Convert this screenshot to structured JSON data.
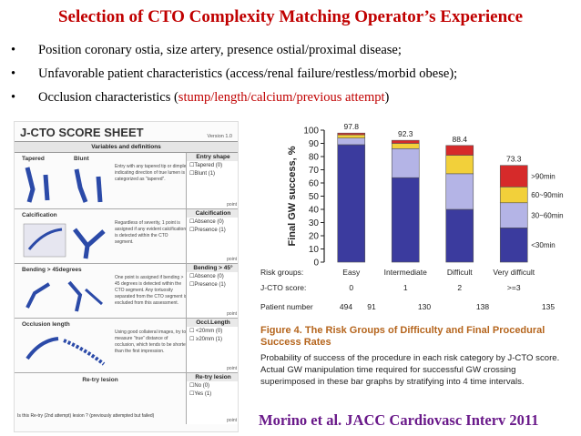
{
  "slide": {
    "title": "Selection of CTO Complexity Matching Operator’s Experience",
    "bullets": [
      {
        "text": "Position coronary ostia, size artery, presence ostial/proximal disease;"
      },
      {
        "text": "Unfavorable patient characteristics (access/renal failure/restless/morbid obese);"
      },
      {
        "prefix": "Occlusion characteristics (",
        "highlight": "stump/length/calcium/previous attempt",
        "suffix": ")"
      }
    ],
    "bullet_symbol": "•",
    "citation": "Morino et al. JACC Cardiovasc Interv 2011",
    "colors": {
      "title": "#c00000",
      "highlight": "#c00000",
      "citation": "#6a1a8a",
      "figure_title": "#b5651d"
    }
  },
  "score_sheet": {
    "title": "J-CTO SCORE SHEET",
    "version": "Version 1.0",
    "variables_header": "Variables and definitions",
    "sections": [
      {
        "name": "Tapered",
        "name2": "Blunt",
        "description": "Entry with any tapered tip or dimple indicating direction of true lumen is categorized as “tapered”.",
        "right_title": "Entry shape",
        "options": [
          "☐Tapered  (0)",
          "☐Blunt     (1)"
        ],
        "point": "point"
      },
      {
        "name": "Calcification",
        "description": "Regardless of severity, 1 point is assigned if any evident calcification is detected within the CTO segment.",
        "right_title": "Calcification",
        "options": [
          "☐Absence  (0)",
          "☐Presence (1)"
        ],
        "point": "point"
      },
      {
        "name": "Bending > 45degrees",
        "description": "One point is assigned if bending > 45 degrees is detected within the CTO segment. Any tortuosity separated from the CTO segment is excluded from this assessment.",
        "right_title": "Bending > 45°",
        "options": [
          "☐Absence  (0)",
          "☐Presence (1)"
        ],
        "point": "point"
      },
      {
        "name": "Occlusion length",
        "description": "Using good collateral images, try to measure “true” distance of occlusion, which tends to be shorter than the first impression.",
        "right_title": "Occl.Length",
        "options": [
          "☐ <20mm  (0)",
          "☐ ≥20mm  (1)"
        ],
        "point": "point"
      },
      {
        "name": "Re-try lesion",
        "description": "Is this Re-try (2nd attempt) lesion ? (previously attempted but failed)",
        "right_title": "Re-try lesion",
        "options": [
          "☐No    (0)",
          "☐Yes   (1)"
        ],
        "point": "point"
      }
    ]
  },
  "chart_data": {
    "type": "bar",
    "stacked": true,
    "ylabel": "Final GW success, %",
    "ylim": [
      0,
      100
    ],
    "yticks": [
      0,
      10,
      20,
      30,
      40,
      50,
      60,
      70,
      80,
      90,
      100
    ],
    "categories": [
      "Easy",
      "Intermediate",
      "Difficult",
      "Very difficult"
    ],
    "row_labels": {
      "risk_groups": "Risk groups:",
      "score": "J-CTO score:",
      "patients": "Patient number"
    },
    "scores": [
      "0",
      "1",
      "2",
      ">=3"
    ],
    "patient_numbers": [
      "494",
      "91",
      "130",
      "138",
      "135"
    ],
    "totals": [
      97.8,
      92.3,
      88.4,
      73.3
    ],
    "series": [
      {
        "name": "<30min",
        "color": "#3b3b9e",
        "values": [
          89,
          64,
          40,
          26
        ]
      },
      {
        "name": "30~60min",
        "color": "#b4b4e6",
        "values": [
          5,
          22,
          27,
          19
        ]
      },
      {
        "name": "60~90min",
        "color": "#f2d03a",
        "values": [
          2.5,
          4,
          14,
          12
        ]
      },
      {
        "name": ">90min",
        "color": "#d62a2a",
        "values": [
          1.3,
          2.3,
          7.4,
          16.3
        ]
      }
    ]
  },
  "figure": {
    "title": "Figure 4. The Risk Groups of Difficulty and Final Procedural Success Rates",
    "caption": "Probability of success of the procedure in each risk category by J-CTO score. Actual GW manipulation time required for successful GW crossing superimposed in these bar graphs by stratifying into 4 time intervals."
  }
}
